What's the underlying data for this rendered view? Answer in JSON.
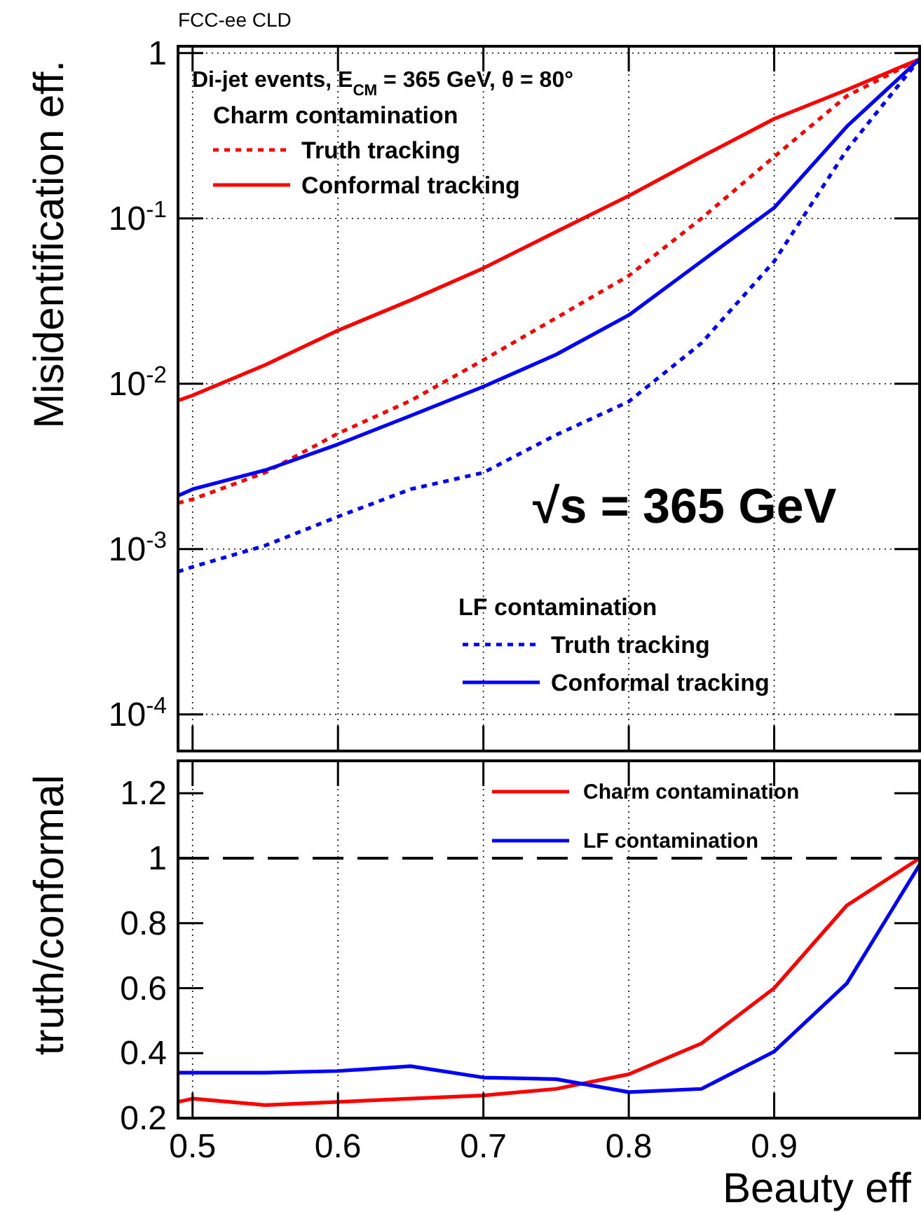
{
  "chart_data": [
    {
      "type": "line",
      "title": "FCC-ee CLD",
      "ylabel": "Misidentification eff.",
      "annotations": [
        "Di-jet events, E$_{CM}$ = 365 GeV, θ = 80°",
        "Charm contamination",
        "LF contamination",
        "√s = 365 GeV"
      ],
      "x": [
        0.49,
        0.5,
        0.55,
        0.6,
        0.65,
        0.7,
        0.75,
        0.8,
        0.85,
        0.9,
        0.95,
        1.0
      ],
      "series": [
        {
          "name": "Truth tracking",
          "color": "#ff0000",
          "line_style": "dotted",
          "values": [
            0.0019,
            0.002,
            0.0029,
            0.005,
            0.0079,
            0.0139,
            0.025,
            0.045,
            0.1,
            0.236,
            0.55,
            0.92
          ]
        },
        {
          "name": "Conformal tracking",
          "color": "#ff0000",
          "line_style": "solid",
          "values": [
            0.0079,
            0.0085,
            0.013,
            0.021,
            0.032,
            0.05,
            0.083,
            0.137,
            0.236,
            0.4,
            0.6,
            0.92
          ]
        },
        {
          "name": "Truth tracking",
          "color": "#0000ff",
          "line_style": "dotted",
          "values": [
            0.00073,
            0.00078,
            0.00105,
            0.00157,
            0.0023,
            0.0029,
            0.0049,
            0.0078,
            0.0176,
            0.055,
            0.26,
            0.92
          ]
        },
        {
          "name": "Conformal tracking",
          "color": "#0000ff",
          "line_style": "solid",
          "values": [
            0.0021,
            0.0023,
            0.003,
            0.0043,
            0.0064,
            0.0096,
            0.015,
            0.026,
            0.055,
            0.116,
            0.36,
            0.92
          ]
        }
      ],
      "xlim": [
        0.49,
        1.0
      ],
      "xticks": [
        0.5,
        0.6,
        0.7,
        0.8,
        0.9
      ],
      "ylim": [
        6e-05,
        1.1
      ],
      "log": "y",
      "yticks": [
        {
          "value": 0.0001,
          "label": "10$^{-4}$"
        },
        {
          "value": 0.001,
          "label": "10$^{-3}$"
        },
        {
          "value": 0.01,
          "label": "10$^{-2}$"
        },
        {
          "value": 0.1,
          "label": "10$^{-1}$"
        },
        1
      ],
      "grid": true,
      "tick_labels": "y",
      "legend": "left"
    },
    {
      "type": "line",
      "xlabel": "Beauty eff",
      "ylabel": "truth/conformal",
      "x": [
        0.49,
        0.5,
        0.55,
        0.6,
        0.65,
        0.7,
        0.75,
        0.8,
        0.85,
        0.9,
        0.95,
        1.0
      ],
      "series": [
        {
          "name": "Charm contamination",
          "color": "#ff0000",
          "values": [
            0.25,
            0.26,
            0.24,
            0.25,
            0.26,
            0.27,
            0.29,
            0.335,
            0.43,
            0.6,
            0.855,
            1.0
          ]
        },
        {
          "name": "LF contamination",
          "color": "#0000ff",
          "values": [
            0.34,
            0.34,
            0.34,
            0.345,
            0.36,
            0.325,
            0.32,
            0.28,
            0.29,
            0.405,
            0.615,
            0.98
          ]
        }
      ],
      "xlim": [
        0.49,
        1.0
      ],
      "xticks": [
        0.5,
        0.6,
        0.7,
        0.8,
        0.9
      ],
      "ylim": [
        0.2,
        1.3
      ],
      "yticks": [
        0.2,
        0.4,
        0.6,
        0.8,
        1,
        1.2
      ],
      "ref_lines": [
        {
          "axis": "y",
          "value": 1,
          "color": "#000000",
          "line_style": "dashed"
        }
      ],
      "grid": "x",
      "legend": "top right"
    }
  ]
}
